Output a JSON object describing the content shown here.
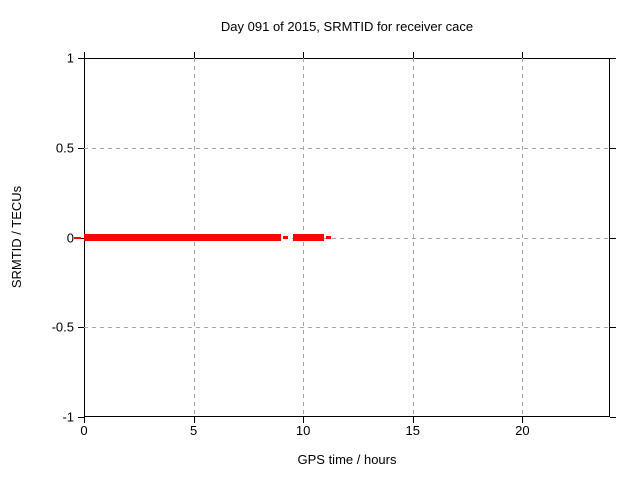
{
  "title": "Day 091 of 2015, SRMTID for receiver cace",
  "chart_data": {
    "type": "line",
    "title": "Day 091 of 2015, SRMTID for receiver cace",
    "xlabel": "GPS time / hours",
    "ylabel": "SRMTID / TECUs",
    "xlim": [
      0,
      24
    ],
    "ylim": [
      -1,
      1
    ],
    "xticks": [
      0,
      5,
      10,
      15,
      20
    ],
    "yticks": [
      1,
      0.5,
      0,
      -0.5,
      -1
    ],
    "grid": true,
    "grid_style": "dashed",
    "legend": "none",
    "series": [
      {
        "name": "SRMTID",
        "color": "#ff0000",
        "y_value": 0,
        "segments": [
          {
            "x0": 0.0,
            "x1": 9.0,
            "y": 0,
            "thick": true
          },
          {
            "x0": 9.1,
            "x1": 9.3,
            "y": 0,
            "thick": false
          },
          {
            "x0": 9.55,
            "x1": 10.95,
            "y": 0,
            "thick": true
          },
          {
            "x0": 11.05,
            "x1": 11.25,
            "y": 0,
            "thick": false
          }
        ]
      }
    ],
    "zero_axis_tick": {
      "y": 0,
      "color": "#ff0000"
    },
    "colors": {
      "line": "#ff0000",
      "grid": "#a6a6a6",
      "border": "#000000",
      "background": "#ffffff",
      "text": "#000000"
    }
  }
}
